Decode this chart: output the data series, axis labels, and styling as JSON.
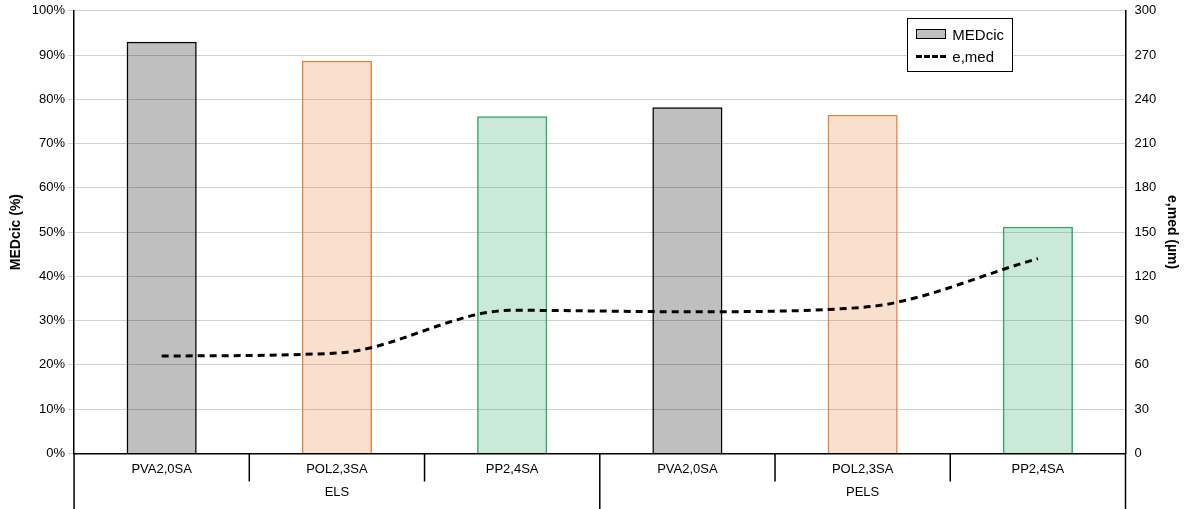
{
  "chart_data": {
    "type": "bar",
    "categories": [
      "PVA2,0SA",
      "POL2,3SA",
      "PP2,4SA",
      "PVA2,0SA",
      "POL2,3SA",
      "PP2,4SA"
    ],
    "series": [
      {
        "name": "MEDcic",
        "colors": [
          "#000000",
          "#e8803a",
          "#2aa866",
          "#000000",
          "#e8803a",
          "#2aa866"
        ],
        "values": [
          93.0,
          88.7,
          76.2,
          78.2,
          76.5,
          51.2
        ]
      },
      {
        "name": "e,med",
        "type": "line",
        "axis": "y2",
        "color": "#000000",
        "line_style": "dashed",
        "marker": "none",
        "values": [
          66,
          68,
          97,
          96,
          99,
          132
        ]
      }
    ],
    "ylabel": "MEDcic (%)",
    "y2label": "e,med (µm)",
    "ylim": [
      0,
      100
    ],
    "yticks": [
      {
        "value": 0,
        "label": "0%"
      },
      {
        "value": 10,
        "label": "10%"
      },
      {
        "value": 20,
        "label": "20%"
      },
      {
        "value": 30,
        "label": "30%"
      },
      {
        "value": 40,
        "label": "40%"
      },
      {
        "value": 50,
        "label": "50%"
      },
      {
        "value": 60,
        "label": "60%"
      },
      {
        "value": 70,
        "label": "70%"
      },
      {
        "value": 80,
        "label": "80%"
      },
      {
        "value": 90,
        "label": "90%"
      },
      {
        "value": 100,
        "label": "100%"
      }
    ],
    "y2lim": [
      0,
      300
    ],
    "y2ticks": [
      0,
      30,
      60,
      90,
      120,
      150,
      180,
      210,
      240,
      270,
      300
    ],
    "annotations": [
      "ELS",
      "PELS"
    ],
    "grid": "y",
    "legend": "top right"
  }
}
